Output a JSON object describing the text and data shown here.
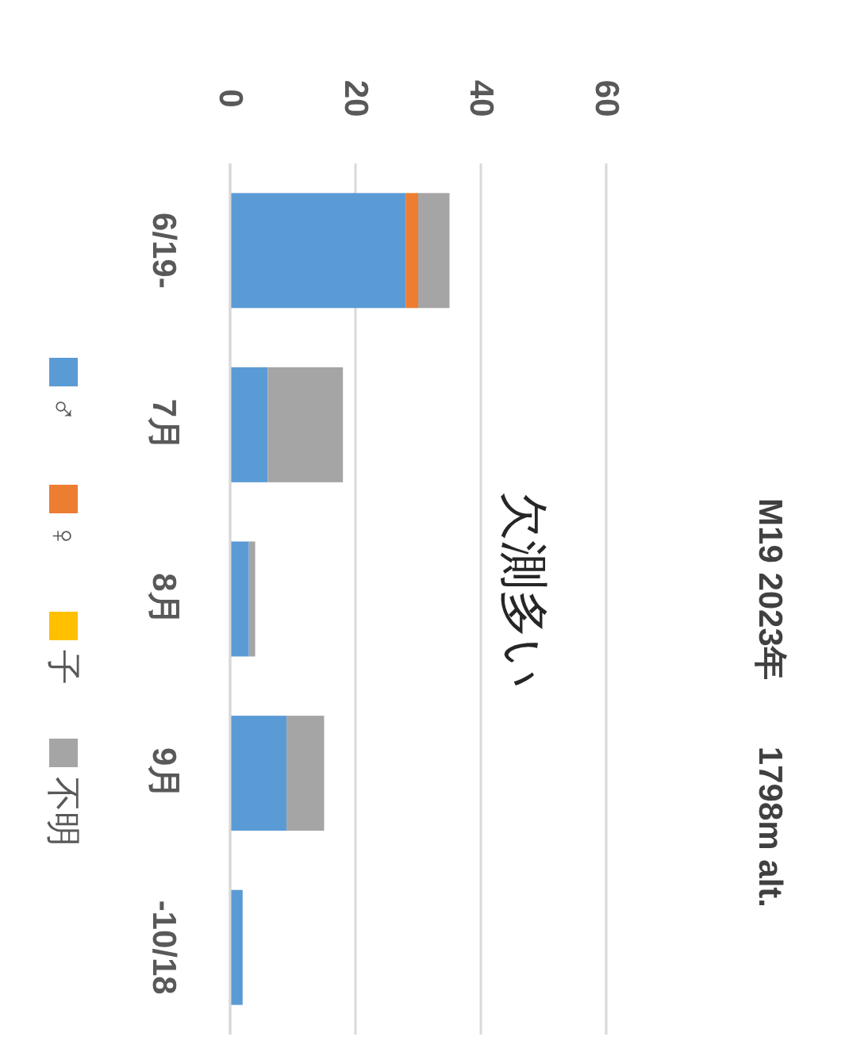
{
  "chart_data": {
    "type": "bar",
    "title": "M19 2023年　　1798m alt.",
    "stacked": true,
    "orientation": "horizontal",
    "categories": [
      "6/19-",
      "7月",
      "8月",
      "9月",
      "-10/18"
    ],
    "series": [
      {
        "name": "♂",
        "color": "#5b9bd5",
        "values": [
          28,
          6,
          3,
          9,
          2
        ]
      },
      {
        "name": "♀",
        "color": "#ed7d31",
        "values": [
          2,
          0,
          0,
          0,
          0
        ]
      },
      {
        "name": "子",
        "color": "#ffc000",
        "values": [
          0,
          0,
          0,
          0,
          0
        ]
      },
      {
        "name": "不明",
        "color": "#a5a5a5",
        "values": [
          5,
          12,
          1,
          6,
          0
        ]
      }
    ],
    "xlim": [
      0,
      60
    ],
    "xticks": [
      0,
      20,
      40,
      60
    ],
    "grid": "x",
    "legend": "left",
    "annotations": [
      "欠測多い"
    ]
  }
}
